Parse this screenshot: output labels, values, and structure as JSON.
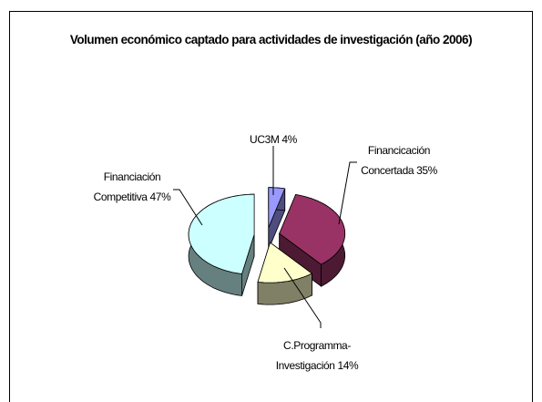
{
  "chart_data": {
    "type": "pie3d",
    "title": "Volumen económico captado para actividades de investigación (año 2006)",
    "categories": [
      "UC3M",
      "Financicación Concertada",
      "C.Programma-Investigación",
      "Financiación Competitiva"
    ],
    "values": [
      4,
      35,
      14,
      47
    ],
    "value_labels": [
      "4%",
      "35%",
      "14%",
      "47%"
    ],
    "colors": [
      "#9999ff",
      "#993366",
      "#ffffcc",
      "#ccffff"
    ]
  }
}
